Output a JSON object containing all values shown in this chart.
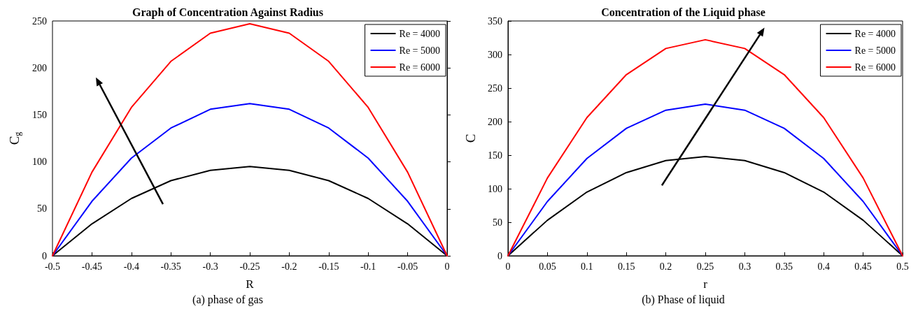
{
  "chart_data": [
    {
      "type": "line",
      "title": "Graph of Concentration Against Radius",
      "xlabel": "R",
      "ylabel": "C$_{g}$",
      "annotations": [
        "(a) phase of gas"
      ],
      "x": [
        -0.5,
        -0.45,
        -0.4,
        -0.35,
        -0.3,
        -0.25,
        -0.2,
        -0.15,
        -0.1,
        -0.05,
        0
      ],
      "series": [
        {
          "name": "Re = 4000",
          "color": "#000000",
          "values": [
            0,
            34,
            61,
            80,
            91,
            95,
            91,
            80,
            61,
            34,
            0
          ]
        },
        {
          "name": "Re = 5000",
          "color": "#0000ff",
          "values": [
            0,
            58,
            104,
            136,
            156,
            162,
            156,
            136,
            104,
            58,
            0
          ]
        },
        {
          "name": "Re = 6000",
          "color": "#ff0000",
          "values": [
            0,
            89,
            158,
            207,
            237,
            247,
            237,
            207,
            158,
            89,
            0
          ]
        }
      ],
      "xlim": [
        -0.5,
        0
      ],
      "xticks": [
        -0.5,
        -0.45,
        -0.4,
        -0.35,
        -0.3,
        -0.25,
        -0.2,
        -0.15,
        -0.1,
        -0.05,
        0
      ],
      "ylim": [
        0,
        250
      ],
      "yticks": [
        0,
        50,
        100,
        150,
        200,
        250
      ],
      "grid": false,
      "legend": "top right",
      "marker": "none",
      "line_style": "solid"
    },
    {
      "type": "line",
      "title": "Concentration of the Liquid phase",
      "xlabel": "r",
      "ylabel": "C",
      "annotations": [
        "(b) Phase of liquid"
      ],
      "x": [
        0,
        0.05,
        0.1,
        0.15,
        0.2,
        0.25,
        0.3,
        0.35,
        0.4,
        0.45,
        0.5
      ],
      "series": [
        {
          "name": "Re = 4000",
          "color": "#000000",
          "values": [
            0,
            53,
            95,
            124,
            142,
            148,
            142,
            124,
            95,
            53,
            0
          ]
        },
        {
          "name": "Re = 5000",
          "color": "#0000ff",
          "values": [
            0,
            81,
            145,
            190,
            217,
            226,
            217,
            190,
            145,
            81,
            0
          ]
        },
        {
          "name": "Re = 6000",
          "color": "#ff0000",
          "values": [
            0,
            116,
            206,
            270,
            309,
            322,
            309,
            270,
            206,
            116,
            0
          ]
        }
      ],
      "xlim": [
        0,
        0.5
      ],
      "xticks": [
        0,
        0.05,
        0.1,
        0.15,
        0.2,
        0.25,
        0.3,
        0.35,
        0.4,
        0.45,
        0.5
      ],
      "ylim": [
        0,
        350
      ],
      "yticks": [
        0,
        50,
        100,
        150,
        200,
        250,
        300,
        350
      ],
      "grid": false,
      "legend": "top right",
      "marker": "none",
      "line_style": "solid"
    }
  ]
}
